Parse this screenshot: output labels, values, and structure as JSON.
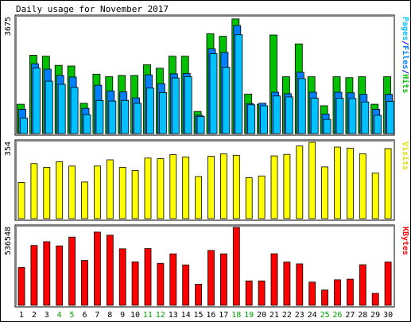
{
  "chart_data": {
    "type": "bar",
    "title": "Daily usage for November 2017",
    "days": [
      "1",
      "2",
      "3",
      "4",
      "5",
      "6",
      "7",
      "8",
      "9",
      "10",
      "11",
      "12",
      "13",
      "14",
      "15",
      "16",
      "17",
      "18",
      "19",
      "20",
      "21",
      "22",
      "23",
      "24",
      "25",
      "26",
      "27",
      "28",
      "29",
      "30"
    ],
    "weekend_days": [
      "4",
      "5",
      "11",
      "12",
      "18",
      "19",
      "25",
      "26"
    ],
    "panels": [
      {
        "key": "hits",
        "ylabel_parts": [
          {
            "text": "Pages",
            "color": "#00c0ff"
          },
          {
            "text": "/",
            "color": "#0000ff"
          },
          {
            "text": "Files",
            "color": "#0080ff"
          },
          {
            "text": "/",
            "color": "#0000ff"
          },
          {
            "text": "Hits",
            "color": "#00c000"
          }
        ],
        "ymax_label": "3675",
        "ymax": 3675,
        "series": [
          {
            "name": "Hits",
            "color": "#00c000",
            "values": [
              930,
              2480,
              2450,
              2160,
              2140,
              960,
              1880,
              1800,
              1840,
              1840,
              2180,
              2070,
              2450,
              2450,
              700,
              3160,
              3080,
              3630,
              1250,
              930,
              3120,
              1800,
              2840,
              1800,
              880,
              1800,
              1770,
              1800,
              930,
              1800
            ]
          },
          {
            "name": "Files",
            "color": "#0080ff",
            "values": [
              770,
              2210,
              2040,
              1840,
              1790,
              800,
              1530,
              1350,
              1320,
              1130,
              1860,
              1580,
              1890,
              1900,
              580,
              2680,
              2570,
              3420,
              950,
              960,
              1310,
              1260,
              1940,
              1310,
              620,
              1310,
              1290,
              1240,
              770,
              1240
            ]
          },
          {
            "name": "Pages",
            "color": "#00c0ff",
            "values": [
              490,
              2080,
              1660,
              1560,
              1460,
              600,
              1050,
              1030,
              1050,
              960,
              1440,
              1300,
              1760,
              1800,
              540,
              2530,
              2100,
              3130,
              910,
              880,
              1190,
              1160,
              1740,
              1120,
              450,
              1120,
              1110,
              1000,
              580,
              1020
            ]
          }
        ]
      },
      {
        "key": "visits",
        "ylabel_parts": [
          {
            "text": "Visits",
            "color": "#e0e000"
          }
        ],
        "ymax_label": "354",
        "ymax": 354,
        "series": [
          {
            "name": "Visits",
            "color": "#ffff00",
            "values": [
              168,
              255,
              238,
              264,
              244,
              170,
              244,
              273,
              238,
              223,
              281,
              278,
              297,
              286,
              195,
              290,
              300,
              294,
              190,
              198,
              291,
              298,
              337,
              354,
              240,
              332,
              327,
              301,
              211,
              325
            ]
          }
        ]
      },
      {
        "key": "kbytes",
        "ylabel_parts": [
          {
            "text": "KBytes",
            "color": "#ff0000"
          }
        ],
        "ymax_label": "536548",
        "ymax": 536548,
        "series": [
          {
            "name": "KBytes",
            "color": "#ff0000",
            "values": [
              260000,
              412000,
              438000,
              409000,
              470000,
              309000,
              504000,
              483000,
              389000,
              299000,
              391000,
              289000,
              354000,
              278000,
              145000,
              378000,
              354000,
              536548,
              168000,
              168000,
              355000,
              298000,
              285000,
              160000,
              105000,
              176000,
              180000,
              279000,
              82000,
              298000
            ]
          }
        ]
      }
    ]
  }
}
